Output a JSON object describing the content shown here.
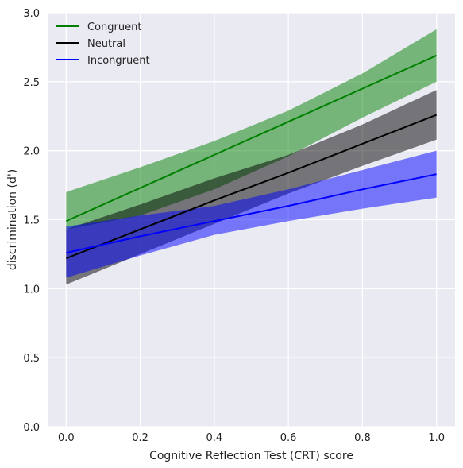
{
  "chart_data": {
    "type": "line",
    "title": "",
    "xlabel": "Cognitive Reflection Test (CRT) score",
    "ylabel": "discrimination (d')",
    "xlim": [
      -0.05,
      1.05
    ],
    "ylim": [
      0.0,
      3.0
    ],
    "xticks": [
      "0.0",
      "0.2",
      "0.4",
      "0.6",
      "0.8",
      "1.0"
    ],
    "yticks": [
      "0.0",
      "0.5",
      "1.0",
      "1.5",
      "2.0",
      "2.5",
      "3.0"
    ],
    "grid": true,
    "background": "#eaeaf2",
    "legend_position": "top-left",
    "series": [
      {
        "name": "Congruent",
        "color": "#008000",
        "x": [
          0.0,
          0.2,
          0.4,
          0.6,
          0.8,
          1.0
        ],
        "values": [
          1.49,
          1.73,
          1.97,
          2.21,
          2.45,
          2.69
        ],
        "ci_lower": [
          1.43,
          1.53,
          1.72,
          1.96,
          2.24,
          2.5
        ],
        "ci_upper": [
          1.7,
          1.88,
          2.07,
          2.29,
          2.56,
          2.88
        ]
      },
      {
        "name": "Neutral",
        "color": "#000000",
        "x": [
          0.0,
          0.2,
          0.4,
          0.6,
          0.8,
          1.0
        ],
        "values": [
          1.22,
          1.43,
          1.64,
          1.84,
          2.05,
          2.26
        ],
        "ci_lower": [
          1.03,
          1.25,
          1.47,
          1.69,
          1.89,
          2.08
        ],
        "ci_upper": [
          1.43,
          1.61,
          1.8,
          1.97,
          2.19,
          2.44
        ]
      },
      {
        "name": "Incongruent",
        "color": "#0000ff",
        "x": [
          0.0,
          0.2,
          0.4,
          0.6,
          0.8,
          1.0
        ],
        "values": [
          1.26,
          1.38,
          1.49,
          1.6,
          1.72,
          1.83
        ],
        "ci_lower": [
          1.08,
          1.24,
          1.39,
          1.49,
          1.58,
          1.66
        ],
        "ci_upper": [
          1.45,
          1.53,
          1.6,
          1.72,
          1.86,
          2.0
        ]
      }
    ]
  }
}
